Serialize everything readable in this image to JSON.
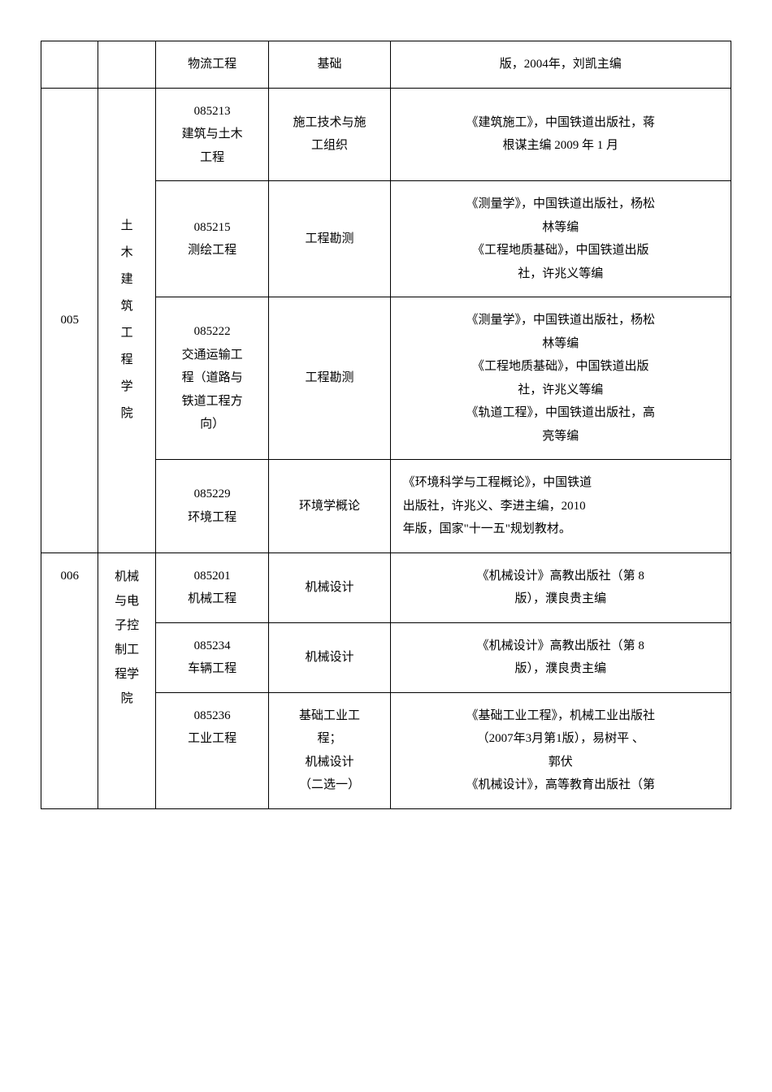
{
  "rows": [
    {
      "c3": "物流工程",
      "c4": "基础",
      "c5": "版，2004年，刘凯主编"
    },
    {
      "c1": "005",
      "c2": "土\n木\n建\n筑\n工\n程\n学\n院",
      "sub": [
        {
          "c3": "085213\n建筑与土木\n工程",
          "c4": "施工技术与施\n工组织",
          "c5": "《建筑施工》，中国铁道出版社，蒋\n根谋主编 2009 年 1 月"
        },
        {
          "c3": "085215\n测绘工程",
          "c4": "工程勘测",
          "c5": "《测量学》，中国铁道出版社，杨松\n林等编\n《工程地质基础》，中国铁道出版\n社，许兆义等编"
        },
        {
          "c3": "085222\n交通运输工\n程（道路与\n铁道工程方\n向）",
          "c4": "工程勘测",
          "c5": "《测量学》，中国铁道出版社，杨松\n林等编\n《工程地质基础》，中国铁道出版\n社，许兆义等编\n《轨道工程》，中国铁道出版社，高\n亮等编"
        },
        {
          "c3": "085229\n环境工程",
          "c4": "环境学概论",
          "c5": "《环境科学与工程概论》，中国铁道\n出版社，许兆义、李进主编，2010\n年版，国家\"十一五\"规划教材。"
        }
      ]
    },
    {
      "c1": "006",
      "c2": "机械\n与电\n子控\n制工\n程学\n院",
      "sub": [
        {
          "c3": "085201\n机械工程",
          "c4": "机械设计",
          "c5": "《机械设计》高教出版社（第 8\n版），濮良贵主编"
        },
        {
          "c3": "085234\n车辆工程",
          "c4": "机械设计",
          "c5": "《机械设计》高教出版社（第 8\n版），濮良贵主编"
        },
        {
          "c3": "085236\n工业工程",
          "c4": "基础工业工\n程；\n机械设计\n（二选一）",
          "c5": "《基础工业工程》，机械工业出版社\n（2007年3月第1版），易树平 、\n郭伏\n《机械设计》，高等教育出版社（第"
        }
      ]
    }
  ]
}
